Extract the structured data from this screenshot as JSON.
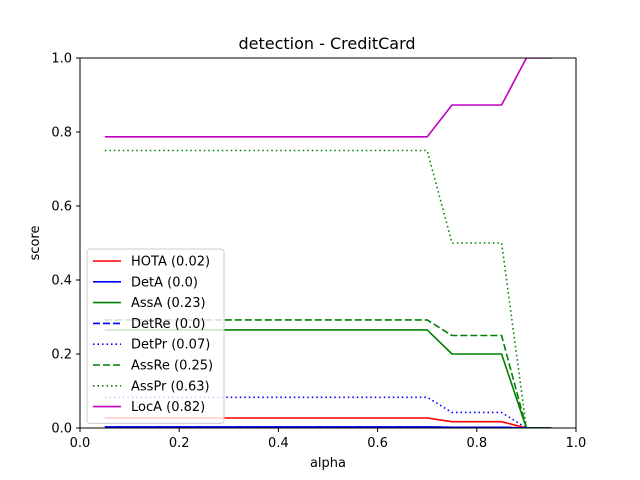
{
  "chart_data": {
    "type": "line",
    "title": "detection - CreditCard",
    "xlabel": "alpha",
    "ylabel": "score",
    "xlim": [
      0.0,
      1.0
    ],
    "ylim": [
      0.0,
      1.0
    ],
    "xticks": [
      "0.0",
      "0.2",
      "0.4",
      "0.6",
      "0.8",
      "1.0"
    ],
    "yticks": [
      "0.0",
      "0.2",
      "0.4",
      "0.6",
      "0.8",
      "1.0"
    ],
    "grid": false,
    "legend_position": "lower-left",
    "x": [
      0.05,
      0.1,
      0.15,
      0.2,
      0.25,
      0.3,
      0.35,
      0.4,
      0.45,
      0.5,
      0.55,
      0.6,
      0.65,
      0.7,
      0.75,
      0.8,
      0.85,
      0.9,
      0.95
    ],
    "series": [
      {
        "name": "HOTA (0.02)",
        "color": "#ff0000",
        "style": "solid",
        "values": [
          0.027,
          0.027,
          0.027,
          0.027,
          0.027,
          0.027,
          0.027,
          0.027,
          0.027,
          0.027,
          0.027,
          0.027,
          0.027,
          0.027,
          0.017,
          0.017,
          0.017,
          0.0,
          0.0
        ]
      },
      {
        "name": "DetA (0.0)",
        "color": "#0000ff",
        "style": "solid",
        "values": [
          0.003,
          0.003,
          0.003,
          0.003,
          0.003,
          0.003,
          0.003,
          0.003,
          0.003,
          0.003,
          0.003,
          0.003,
          0.003,
          0.003,
          0.002,
          0.002,
          0.002,
          0.0,
          0.0
        ]
      },
      {
        "name": "AssA (0.23)",
        "color": "#008000",
        "style": "solid",
        "values": [
          0.265,
          0.265,
          0.265,
          0.265,
          0.265,
          0.265,
          0.265,
          0.265,
          0.265,
          0.265,
          0.265,
          0.265,
          0.265,
          0.265,
          0.2,
          0.2,
          0.2,
          0.0,
          0.0
        ]
      },
      {
        "name": "DetRe (0.0)",
        "color": "#0000ff",
        "style": "dashed",
        "values": [
          0.003,
          0.003,
          0.003,
          0.003,
          0.003,
          0.003,
          0.003,
          0.003,
          0.003,
          0.003,
          0.003,
          0.003,
          0.003,
          0.003,
          0.002,
          0.002,
          0.002,
          0.0,
          0.0
        ]
      },
      {
        "name": "DetPr (0.07)",
        "color": "#0000ff",
        "style": "dotted",
        "values": [
          0.083,
          0.083,
          0.083,
          0.083,
          0.083,
          0.083,
          0.083,
          0.083,
          0.083,
          0.083,
          0.083,
          0.083,
          0.083,
          0.083,
          0.042,
          0.042,
          0.042,
          0.0,
          0.0
        ]
      },
      {
        "name": "AssRe (0.25)",
        "color": "#008000",
        "style": "dashed",
        "values": [
          0.292,
          0.292,
          0.292,
          0.292,
          0.292,
          0.292,
          0.292,
          0.292,
          0.292,
          0.292,
          0.292,
          0.292,
          0.292,
          0.292,
          0.25,
          0.25,
          0.25,
          0.0,
          0.0
        ]
      },
      {
        "name": "AssPr (0.63)",
        "color": "#008000",
        "style": "dotted",
        "values": [
          0.75,
          0.75,
          0.75,
          0.75,
          0.75,
          0.75,
          0.75,
          0.75,
          0.75,
          0.75,
          0.75,
          0.75,
          0.75,
          0.75,
          0.5,
          0.5,
          0.5,
          0.0,
          0.0
        ]
      },
      {
        "name": "LocA (0.82)",
        "color": "#bf00bf",
        "style": "solid",
        "values": [
          0.787,
          0.787,
          0.787,
          0.787,
          0.787,
          0.787,
          0.787,
          0.787,
          0.787,
          0.787,
          0.787,
          0.787,
          0.787,
          0.787,
          0.873,
          0.873,
          0.873,
          1.0,
          1.0
        ]
      }
    ]
  }
}
